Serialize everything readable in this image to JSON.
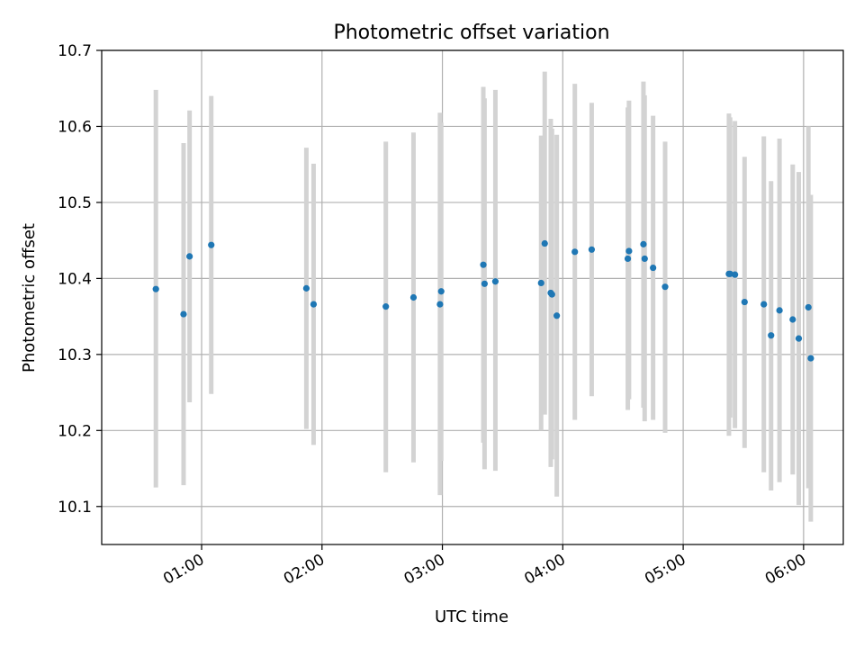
{
  "chart_data": {
    "type": "scatter",
    "title": "Photometric offset variation",
    "xlabel": "UTC time",
    "ylabel": "Photometric offset",
    "x_unit": "hours UTC",
    "xlim": [
      0.17,
      6.33
    ],
    "ylim": [
      10.05,
      10.7
    ],
    "x_ticks": [
      {
        "value": 1,
        "label": "01:00"
      },
      {
        "value": 2,
        "label": "02:00"
      },
      {
        "value": 3,
        "label": "03:00"
      },
      {
        "value": 4,
        "label": "04:00"
      },
      {
        "value": 5,
        "label": "05:00"
      },
      {
        "value": 6,
        "label": "06:00"
      }
    ],
    "y_ticks": [
      {
        "value": 10.1,
        "label": "10.1"
      },
      {
        "value": 10.2,
        "label": "10.2"
      },
      {
        "value": 10.3,
        "label": "10.3"
      },
      {
        "value": 10.4,
        "label": "10.4"
      },
      {
        "value": 10.5,
        "label": "10.5"
      },
      {
        "value": 10.6,
        "label": "10.6"
      },
      {
        "value": 10.7,
        "label": "10.7"
      }
    ],
    "grid": true,
    "marker_color": "#1f77b4",
    "errorbar_color": "#d3d3d3",
    "points": [
      {
        "x": 0.62,
        "y": 10.386,
        "lo": 10.125,
        "hi": 10.648
      },
      {
        "x": 0.85,
        "y": 10.353,
        "lo": 10.128,
        "hi": 10.578
      },
      {
        "x": 0.9,
        "y": 10.429,
        "lo": 10.237,
        "hi": 10.621
      },
      {
        "x": 1.08,
        "y": 10.444,
        "lo": 10.248,
        "hi": 10.64
      },
      {
        "x": 1.87,
        "y": 10.387,
        "lo": 10.202,
        "hi": 10.572
      },
      {
        "x": 1.93,
        "y": 10.366,
        "lo": 10.181,
        "hi": 10.551
      },
      {
        "x": 2.53,
        "y": 10.363,
        "lo": 10.145,
        "hi": 10.58
      },
      {
        "x": 2.76,
        "y": 10.375,
        "lo": 10.158,
        "hi": 10.592
      },
      {
        "x": 2.98,
        "y": 10.366,
        "lo": 10.115,
        "hi": 10.618
      },
      {
        "x": 2.99,
        "y": 10.383,
        "lo": 10.16,
        "hi": 10.605
      },
      {
        "x": 3.34,
        "y": 10.418,
        "lo": 10.184,
        "hi": 10.652
      },
      {
        "x": 3.35,
        "y": 10.393,
        "lo": 10.149,
        "hi": 10.637
      },
      {
        "x": 3.44,
        "y": 10.396,
        "lo": 10.147,
        "hi": 10.648
      },
      {
        "x": 3.82,
        "y": 10.394,
        "lo": 10.2,
        "hi": 10.588
      },
      {
        "x": 3.85,
        "y": 10.446,
        "lo": 10.221,
        "hi": 10.672
      },
      {
        "x": 3.9,
        "y": 10.381,
        "lo": 10.152,
        "hi": 10.61
      },
      {
        "x": 3.91,
        "y": 10.379,
        "lo": 10.162,
        "hi": 10.597
      },
      {
        "x": 3.95,
        "y": 10.351,
        "lo": 10.113,
        "hi": 10.589
      },
      {
        "x": 4.1,
        "y": 10.435,
        "lo": 10.214,
        "hi": 10.656
      },
      {
        "x": 4.24,
        "y": 10.438,
        "lo": 10.245,
        "hi": 10.631
      },
      {
        "x": 4.54,
        "y": 10.426,
        "lo": 10.227,
        "hi": 10.625
      },
      {
        "x": 4.55,
        "y": 10.436,
        "lo": 10.241,
        "hi": 10.634
      },
      {
        "x": 4.67,
        "y": 10.445,
        "lo": 10.23,
        "hi": 10.659
      },
      {
        "x": 4.68,
        "y": 10.426,
        "lo": 10.212,
        "hi": 10.641
      },
      {
        "x": 4.75,
        "y": 10.414,
        "lo": 10.214,
        "hi": 10.614
      },
      {
        "x": 4.85,
        "y": 10.389,
        "lo": 10.197,
        "hi": 10.58
      },
      {
        "x": 5.38,
        "y": 10.406,
        "lo": 10.193,
        "hi": 10.617
      },
      {
        "x": 5.39,
        "y": 10.406,
        "lo": 10.217,
        "hi": 10.612
      },
      {
        "x": 5.43,
        "y": 10.405,
        "lo": 10.203,
        "hi": 10.607
      },
      {
        "x": 5.51,
        "y": 10.369,
        "lo": 10.177,
        "hi": 10.56
      },
      {
        "x": 5.67,
        "y": 10.366,
        "lo": 10.145,
        "hi": 10.587
      },
      {
        "x": 5.73,
        "y": 10.325,
        "lo": 10.121,
        "hi": 10.528
      },
      {
        "x": 5.8,
        "y": 10.358,
        "lo": 10.132,
        "hi": 10.584
      },
      {
        "x": 5.91,
        "y": 10.346,
        "lo": 10.142,
        "hi": 10.55
      },
      {
        "x": 5.96,
        "y": 10.321,
        "lo": 10.102,
        "hi": 10.54
      },
      {
        "x": 6.04,
        "y": 10.362,
        "lo": 10.124,
        "hi": 10.6
      },
      {
        "x": 6.06,
        "y": 10.295,
        "lo": 10.08,
        "hi": 10.51
      }
    ]
  }
}
